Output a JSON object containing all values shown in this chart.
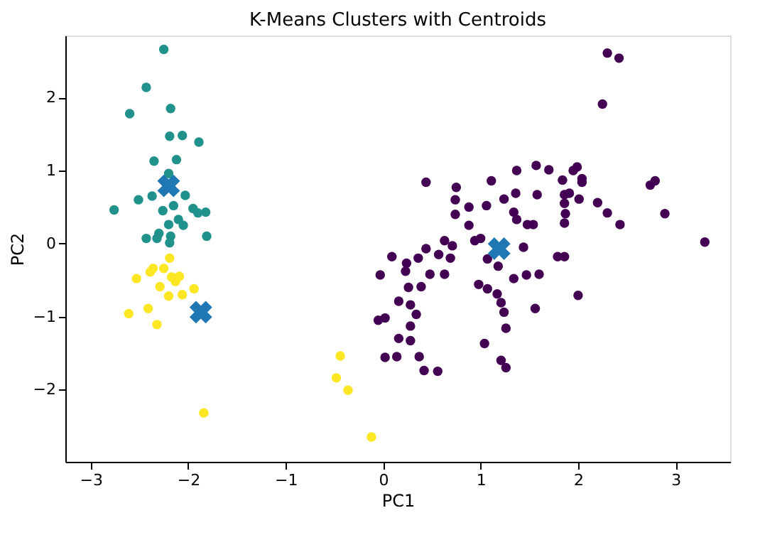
{
  "chart_data": {
    "type": "scatter",
    "title": "K-Means Clusters with Centroids",
    "xlabel": "PC1",
    "ylabel": "PC2",
    "xlim": [
      -3.26,
      3.56
    ],
    "ylim": [
      -2.99,
      2.85
    ],
    "xticks": [
      {
        "value": -3,
        "label": "−3"
      },
      {
        "value": -2,
        "label": "−2"
      },
      {
        "value": -1,
        "label": "−1"
      },
      0,
      1,
      2,
      3
    ],
    "yticks": [
      {
        "value": -2,
        "label": "−2"
      },
      {
        "value": -1,
        "label": "−1"
      },
      0,
      1,
      2
    ],
    "grid": false,
    "series": [
      {
        "color": "#440154",
        "marker": "circle",
        "x": [
          0.44,
          0.75,
          1.11,
          1.37,
          1.57,
          1.7,
          2.3,
          2.42,
          2.25,
          1.84,
          1.95,
          1.99,
          2.04,
          2.74,
          2.79,
          2.04,
          1.58,
          1.86,
          1.91,
          2.01,
          1.86,
          2.2,
          2.3,
          1.87,
          1.86,
          2.43,
          2.89,
          1.54,
          3.3,
          1.79,
          1.86,
          1.6,
          2.0,
          1.56,
          0.74,
          0.88,
          1.06,
          1.24,
          1.36,
          0.74,
          1.34,
          1.37,
          1.48,
          0.88,
          0.63,
          0.71,
          0.94,
          1.0,
          1.44,
          0.09,
          0.44,
          0.57,
          0.69,
          0.36,
          0.24,
          0.23,
          -0.03,
          0.48,
          0.63,
          1.07,
          1.18,
          1.34,
          1.47,
          0.26,
          0.39,
          0.98,
          1.07,
          1.17,
          1.21,
          1.24,
          0.16,
          0.28,
          0.34,
          -0.05,
          0.02,
          0.28,
          1.26,
          0.16,
          0.28,
          1.04,
          0.02,
          0.14,
          0.37,
          1.21,
          1.26,
          0.42,
          0.56
        ],
        "values": [
          0.84,
          0.77,
          0.86,
          1.0,
          1.07,
          1.01,
          2.61,
          2.54,
          1.91,
          0.87,
          1.0,
          1.05,
          0.89,
          0.8,
          0.86,
          0.84,
          0.67,
          0.67,
          0.69,
          0.61,
          0.55,
          0.56,
          0.42,
          0.41,
          0.28,
          0.26,
          0.41,
          0.26,
          0.02,
          -0.18,
          -0.18,
          -0.42,
          -0.71,
          -0.89,
          0.6,
          0.5,
          0.52,
          0.61,
          0.69,
          0.4,
          0.43,
          0.33,
          0.26,
          0.25,
          0.04,
          -0.03,
          0.04,
          0.07,
          -0.05,
          -0.18,
          -0.07,
          -0.15,
          -0.2,
          -0.2,
          -0.27,
          -0.38,
          -0.43,
          -0.42,
          -0.42,
          -0.21,
          -0.31,
          -0.48,
          -0.43,
          -0.6,
          -0.59,
          -0.56,
          -0.62,
          -0.69,
          -0.81,
          -0.94,
          -0.79,
          -0.84,
          -0.97,
          -1.05,
          -1.02,
          -1.13,
          -1.16,
          -1.3,
          -1.33,
          -1.37,
          -1.56,
          -1.55,
          -1.55,
          -1.6,
          -1.7,
          -1.74,
          -1.75
        ]
      },
      {
        "color": "#21918c",
        "marker": "circle",
        "x": [
          -2.25,
          -2.43,
          -2.6,
          -2.18,
          -2.19,
          -2.06,
          -1.89,
          -2.35,
          -2.12,
          -2.2,
          -2.51,
          -2.37,
          -2.03,
          -2.76,
          -2.26,
          -2.15,
          -1.95,
          -1.82,
          -1.9,
          -2.1,
          -2.2,
          -2.05,
          -2.3,
          -2.43,
          -2.18,
          -1.81,
          -2.32,
          -2.19
        ],
        "values": [
          2.66,
          2.14,
          1.78,
          1.85,
          1.47,
          1.48,
          1.39,
          1.13,
          1.15,
          0.96,
          0.6,
          0.65,
          0.66,
          0.46,
          0.45,
          0.52,
          0.48,
          0.43,
          0.42,
          0.33,
          0.26,
          0.25,
          0.14,
          0.07,
          0.1,
          0.1,
          0.07,
          0.01
        ]
      },
      {
        "color": "#fde725",
        "marker": "circle",
        "x": [
          -2.19,
          -2.36,
          -2.39,
          -2.25,
          -2.53,
          -2.17,
          -2.09,
          -2.13,
          -2.29,
          -1.94,
          -2.06,
          -2.2,
          -2.41,
          -2.61,
          -2.32,
          -0.44,
          -0.48,
          -0.36,
          -1.84,
          -0.12
        ],
        "values": [
          -0.2,
          -0.34,
          -0.39,
          -0.34,
          -0.48,
          -0.46,
          -0.45,
          -0.52,
          -0.59,
          -0.62,
          -0.7,
          -0.72,
          -0.89,
          -0.96,
          -1.11,
          -1.54,
          -1.84,
          -2.01,
          -2.32,
          -2.65
        ]
      },
      {
        "color": "#1f77b4",
        "marker": "cross",
        "x": [
          1.19,
          -2.2,
          -1.87
        ],
        "values": [
          -0.07,
          0.79,
          -0.94
        ]
      }
    ]
  }
}
